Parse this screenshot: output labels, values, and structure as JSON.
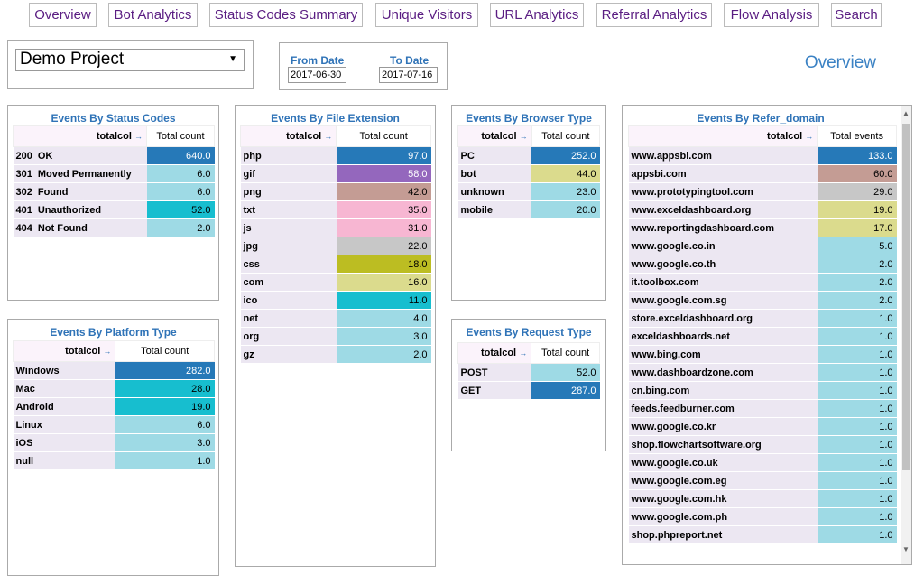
{
  "nav": [
    {
      "label": "Overview"
    },
    {
      "label": "Bot Analytics"
    },
    {
      "label": "Status Codes Summary"
    },
    {
      "label": "Unique Visitors"
    },
    {
      "label": "URL Analytics"
    },
    {
      "label": "Referral Analytics"
    },
    {
      "label": "Flow Analysis"
    },
    {
      "label": "Search"
    }
  ],
  "project": {
    "selected": "Demo Project"
  },
  "dates": {
    "from_label": "From Date",
    "to_label": "To Date",
    "from_value": "2017-06-30",
    "to_value": "2017-07-16"
  },
  "page_title": "Overview",
  "colors": {
    "dark": "#2679b8",
    "purple": "#9467bd",
    "brown": "#c49c94",
    "pink": "#f7b6d2",
    "gray": "#c7c7c7",
    "olive": "#bcbd22",
    "khaki": "#dbdb8d",
    "teal": "#17becf",
    "light": "#9edae5",
    "rosy": "#c49c94"
  },
  "status_codes": {
    "title": "Events By Status Codes",
    "row_header": "totalcol",
    "col_header": "Total count",
    "rows": [
      {
        "code": "200",
        "label": "OK",
        "value": "640.0",
        "color": "#2679b8",
        "dark": true
      },
      {
        "code": "301",
        "label": "Moved Permanently",
        "value": "6.0",
        "color": "#9edae5",
        "dark": false
      },
      {
        "code": "302",
        "label": "Found",
        "value": "6.0",
        "color": "#9edae5",
        "dark": false
      },
      {
        "code": "401",
        "label": "Unauthorized",
        "value": "52.0",
        "color": "#17becf",
        "dark": false
      },
      {
        "code": "404",
        "label": "Not Found",
        "value": "2.0",
        "color": "#9edae5",
        "dark": false
      }
    ]
  },
  "platform": {
    "title": "Events By Platform Type",
    "row_header": "totalcol",
    "col_header": "Total count",
    "rows": [
      {
        "label": "Windows",
        "value": "282.0",
        "color": "#2679b8",
        "dark": true
      },
      {
        "label": "Mac",
        "value": "28.0",
        "color": "#17becf",
        "dark": false
      },
      {
        "label": "Android",
        "value": "19.0",
        "color": "#17becf",
        "dark": false
      },
      {
        "label": "Linux",
        "value": "6.0",
        "color": "#9edae5",
        "dark": false
      },
      {
        "label": "iOS",
        "value": "3.0",
        "color": "#9edae5",
        "dark": false
      },
      {
        "label": "null",
        "value": "1.0",
        "color": "#9edae5",
        "dark": false
      }
    ]
  },
  "file_ext": {
    "title": "Events By File Extension",
    "row_header": "totalcol",
    "col_header": "Total count",
    "rows": [
      {
        "label": "php",
        "value": "97.0",
        "color": "#2679b8",
        "dark": true
      },
      {
        "label": "gif",
        "value": "58.0",
        "color": "#9467bd",
        "dark": true
      },
      {
        "label": "png",
        "value": "42.0",
        "color": "#c49c94",
        "dark": false
      },
      {
        "label": "txt",
        "value": "35.0",
        "color": "#f7b6d2",
        "dark": false
      },
      {
        "label": "js",
        "value": "31.0",
        "color": "#f7b6d2",
        "dark": false
      },
      {
        "label": "jpg",
        "value": "22.0",
        "color": "#c7c7c7",
        "dark": false
      },
      {
        "label": "css",
        "value": "18.0",
        "color": "#bcbd22",
        "dark": false
      },
      {
        "label": "com",
        "value": "16.0",
        "color": "#dbdb8d",
        "dark": false
      },
      {
        "label": "ico",
        "value": "11.0",
        "color": "#17becf",
        "dark": false
      },
      {
        "label": "net",
        "value": "4.0",
        "color": "#9edae5",
        "dark": false
      },
      {
        "label": "org",
        "value": "3.0",
        "color": "#9edae5",
        "dark": false
      },
      {
        "label": "gz",
        "value": "2.0",
        "color": "#9edae5",
        "dark": false
      }
    ]
  },
  "browser": {
    "title": "Events By Browser Type",
    "row_header": "totalcol",
    "col_header": "Total count",
    "rows": [
      {
        "label": "PC",
        "value": "252.0",
        "color": "#2679b8",
        "dark": true
      },
      {
        "label": "bot",
        "value": "44.0",
        "color": "#dbdb8d",
        "dark": false
      },
      {
        "label": "unknown",
        "value": "23.0",
        "color": "#9edae5",
        "dark": false
      },
      {
        "label": "mobile",
        "value": "20.0",
        "color": "#9edae5",
        "dark": false
      }
    ]
  },
  "request": {
    "title": "Events By Request Type",
    "row_header": "totalcol",
    "col_header": "Total count",
    "rows": [
      {
        "label": "POST",
        "value": "52.0",
        "color": "#9edae5",
        "dark": false
      },
      {
        "label": "GET",
        "value": "287.0",
        "color": "#2679b8",
        "dark": true
      }
    ]
  },
  "refer": {
    "title": "Events By Refer_domain",
    "row_header": "totalcol",
    "col_header": "Total events",
    "rows": [
      {
        "label": "www.appsbi.com",
        "value": "133.0",
        "color": "#2679b8",
        "dark": true
      },
      {
        "label": "appsbi.com",
        "value": "60.0",
        "color": "#c49c94",
        "dark": false
      },
      {
        "label": "www.prototypingtool.com",
        "value": "29.0",
        "color": "#c7c7c7",
        "dark": false
      },
      {
        "label": "www.exceldashboard.org",
        "value": "19.0",
        "color": "#dbdb8d",
        "dark": false
      },
      {
        "label": "www.reportingdashboard.com",
        "value": "17.0",
        "color": "#dbdb8d",
        "dark": false
      },
      {
        "label": "www.google.co.in",
        "value": "5.0",
        "color": "#9edae5",
        "dark": false
      },
      {
        "label": "www.google.co.th",
        "value": "2.0",
        "color": "#9edae5",
        "dark": false
      },
      {
        "label": "it.toolbox.com",
        "value": "2.0",
        "color": "#9edae5",
        "dark": false
      },
      {
        "label": "www.google.com.sg",
        "value": "2.0",
        "color": "#9edae5",
        "dark": false
      },
      {
        "label": "store.exceldashboard.org",
        "value": "1.0",
        "color": "#9edae5",
        "dark": false
      },
      {
        "label": "exceldashboards.net",
        "value": "1.0",
        "color": "#9edae5",
        "dark": false
      },
      {
        "label": "www.bing.com",
        "value": "1.0",
        "color": "#9edae5",
        "dark": false
      },
      {
        "label": "www.dashboardzone.com",
        "value": "1.0",
        "color": "#9edae5",
        "dark": false
      },
      {
        "label": "cn.bing.com",
        "value": "1.0",
        "color": "#9edae5",
        "dark": false
      },
      {
        "label": "feeds.feedburner.com",
        "value": "1.0",
        "color": "#9edae5",
        "dark": false
      },
      {
        "label": "www.google.co.kr",
        "value": "1.0",
        "color": "#9edae5",
        "dark": false
      },
      {
        "label": "shop.flowchartsoftware.org",
        "value": "1.0",
        "color": "#9edae5",
        "dark": false
      },
      {
        "label": "www.google.co.uk",
        "value": "1.0",
        "color": "#9edae5",
        "dark": false
      },
      {
        "label": "www.google.com.eg",
        "value": "1.0",
        "color": "#9edae5",
        "dark": false
      },
      {
        "label": "www.google.com.hk",
        "value": "1.0",
        "color": "#9edae5",
        "dark": false
      },
      {
        "label": "www.google.com.ph",
        "value": "1.0",
        "color": "#9edae5",
        "dark": false
      },
      {
        "label": "shop.phpreport.net",
        "value": "1.0",
        "color": "#9edae5",
        "dark": false
      }
    ]
  }
}
